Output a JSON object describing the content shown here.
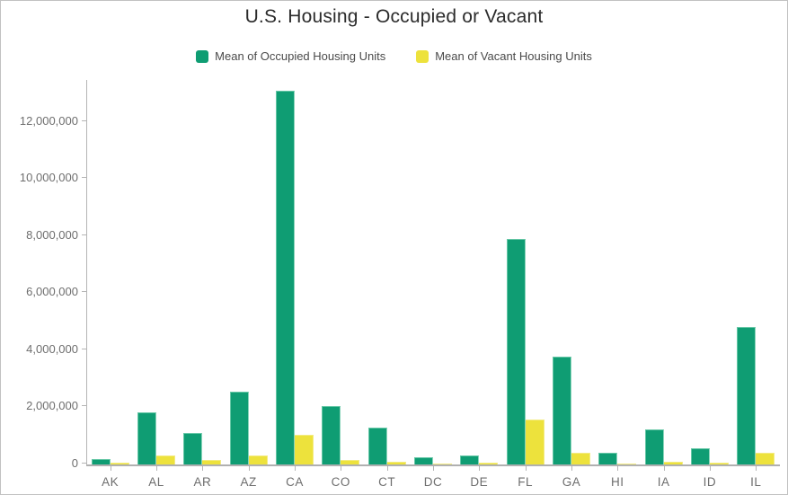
{
  "title": "U.S. Housing - Occupied or Vacant",
  "colors": {
    "occupied": "#0f9d73",
    "vacant": "#ede23c",
    "axis_line": "#b5b5b5",
    "tick_text": "#6e6e6e",
    "title_text": "#2b2b2b",
    "legend_text": "#4a4a4a"
  },
  "legend": {
    "items": [
      {
        "label": "Mean of Occupied Housing Units",
        "series": "occupied"
      },
      {
        "label": "Mean of Vacant Housing Units",
        "series": "vacant"
      }
    ]
  },
  "chart_data": {
    "type": "bar",
    "title": "U.S. Housing - Occupied or Vacant",
    "xlabel": "",
    "ylabel": "",
    "categories": [
      "AK",
      "AL",
      "AR",
      "AZ",
      "CA",
      "CO",
      "CT",
      "DC",
      "DE",
      "FL",
      "GA",
      "HI",
      "IA",
      "ID",
      "IL"
    ],
    "series": [
      {
        "name": "Mean of Occupied Housing Units",
        "color": "#0f9d73",
        "values": [
          190000,
          1830000,
          1090000,
          2550000,
          13100000,
          2060000,
          1290000,
          240000,
          320000,
          7900000,
          3780000,
          400000,
          1220000,
          570000,
          4830000
        ]
      },
      {
        "name": "Mean of Vacant Housing Units",
        "color": "#ede23c",
        "values": [
          50000,
          300000,
          150000,
          330000,
          1030000,
          170000,
          80000,
          30000,
          50000,
          1560000,
          420000,
          40000,
          90000,
          50000,
          420000
        ]
      }
    ],
    "ylim": [
      0,
      13480000
    ],
    "yticks": [
      0,
      2000000,
      4000000,
      6000000,
      8000000,
      10000000,
      12000000
    ],
    "grid": false,
    "legend_position": "top"
  }
}
